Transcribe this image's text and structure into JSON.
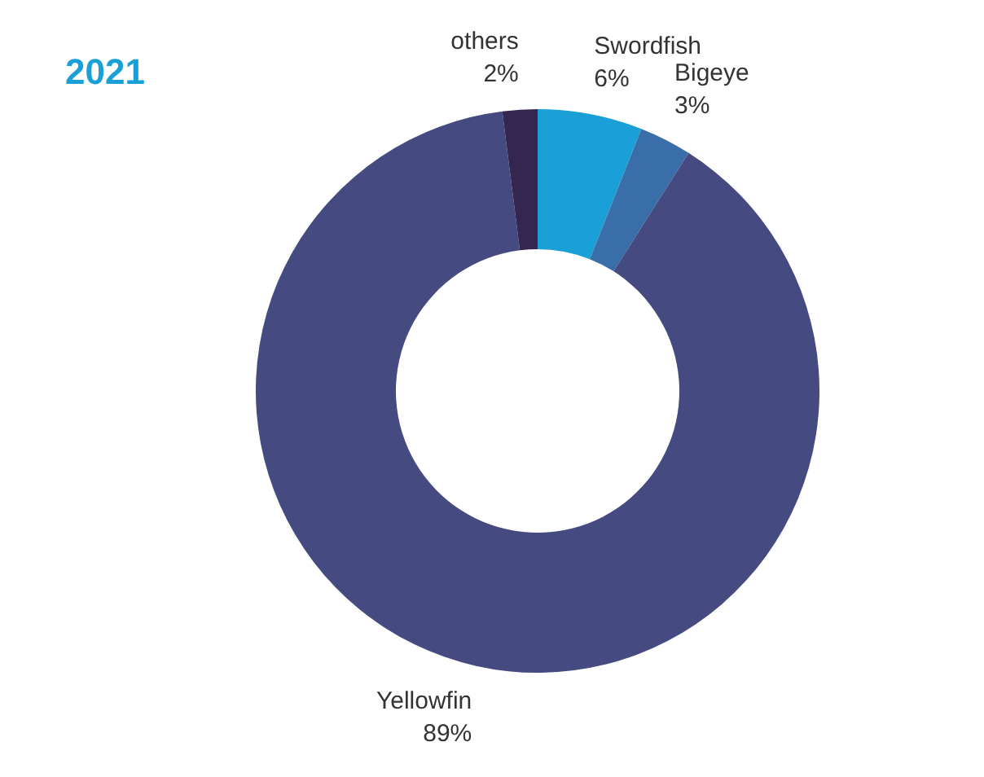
{
  "chart_data": {
    "type": "donut",
    "title": "2021",
    "categories": [
      "Swordfish",
      "Bigeye",
      "Yellowfin",
      "others"
    ],
    "values": [
      6,
      3,
      89,
      2
    ],
    "colors": [
      "#1a9fd6",
      "#3a6ea8",
      "#454a80",
      "#35264f"
    ],
    "data_labels": true,
    "value_labels": [
      "6%",
      "3%",
      "89%",
      "2%"
    ],
    "legend": false
  }
}
